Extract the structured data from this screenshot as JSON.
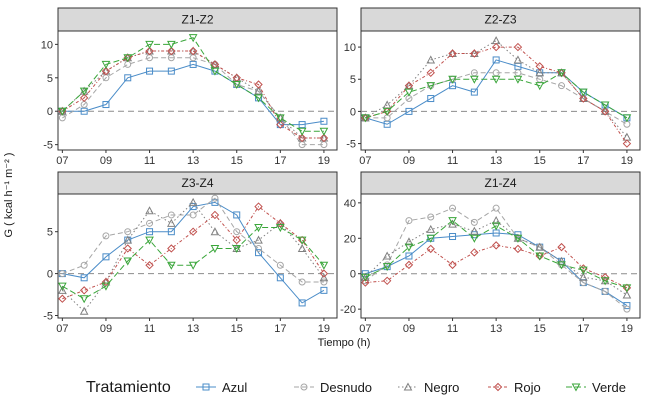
{
  "chart_data": {
    "type": "line",
    "xlabel": "Tiempo (h)",
    "ylabel": "G ( kcal h⁻¹ m⁻² )",
    "legend_title": "Tratamiento",
    "legend_position": "bottom",
    "x_ticks": [
      "07",
      "09",
      "11",
      "13",
      "15",
      "17",
      "19"
    ],
    "x_tick_values": [
      7,
      9,
      11,
      13,
      15,
      17,
      19
    ],
    "xlim": [
      6.8,
      19.6
    ],
    "x": [
      7,
      8,
      9,
      10,
      11,
      12,
      13,
      14,
      15,
      16,
      17,
      18,
      19
    ],
    "reference_line": 0,
    "series_styles": [
      {
        "name": "Azul",
        "color": "#4a8cc8",
        "dash": "",
        "marker": "square"
      },
      {
        "name": "Desnudo",
        "color": "#a6a6a6",
        "dash": "5,3",
        "marker": "circle"
      },
      {
        "name": "Negro",
        "color": "#808080",
        "dash": "1.5,2.5",
        "marker": "triangle-up"
      },
      {
        "name": "Rojo",
        "color": "#c0504d",
        "dash": "3,2,1,2",
        "marker": "diamond"
      },
      {
        "name": "Verde",
        "color": "#3aa63a",
        "dash": "6,3",
        "marker": "triangle-down"
      }
    ],
    "panels": [
      {
        "title": "Z1-Z2",
        "ylim": [
          -5.8,
          12
        ],
        "y_ticks": [
          -5,
          0,
          5,
          10
        ],
        "series": [
          {
            "name": "Azul",
            "values": [
              0,
              0,
              1,
              5,
              6,
              6,
              7,
              6,
              4,
              2,
              -2,
              -2,
              -1.5
            ]
          },
          {
            "name": "Desnudo",
            "values": [
              -1,
              1,
              5,
              7,
              8,
              8,
              8,
              7,
              4,
              3,
              -1,
              -5,
              -5
            ]
          },
          {
            "name": "Negro",
            "values": [
              0,
              3,
              6,
              8,
              9,
              9,
              9,
              7,
              5,
              3,
              -1,
              -4,
              -4
            ]
          },
          {
            "name": "Rojo",
            "values": [
              0,
              2,
              6,
              8,
              9,
              9,
              9,
              7,
              5,
              4,
              -2,
              -4,
              -4
            ]
          },
          {
            "name": "Verde",
            "values": [
              0,
              3,
              7,
              8,
              10,
              10,
              11,
              6,
              4,
              2,
              -1,
              -3,
              -3
            ]
          }
        ]
      },
      {
        "title": "Z2-Z3",
        "ylim": [
          -6,
          12.5
        ],
        "y_ticks": [
          -5,
          0,
          5,
          10
        ],
        "series": [
          {
            "name": "Azul",
            "values": [
              -1,
              -2,
              0,
              2,
              4,
              3,
              8,
              7,
              6,
              6,
              3,
              1,
              -1
            ]
          },
          {
            "name": "Desnudo",
            "values": [
              -1,
              -1,
              2,
              4,
              5,
              6,
              6,
              6,
              5,
              4,
              2,
              0,
              -2
            ]
          },
          {
            "name": "Negro",
            "values": [
              -1,
              1,
              4,
              8,
              9,
              9,
              11,
              8,
              6,
              6,
              2,
              0,
              -4
            ]
          },
          {
            "name": "Rojo",
            "values": [
              -1,
              0,
              4,
              6,
              9,
              9,
              10,
              10,
              7,
              6,
              2,
              0,
              -5
            ]
          },
          {
            "name": "Verde",
            "values": [
              -1,
              0,
              3,
              4,
              5,
              5,
              5,
              5,
              4,
              6,
              3,
              1,
              -1
            ]
          }
        ]
      },
      {
        "title": "Z3-Z4",
        "ylim": [
          -5.3,
          9.5
        ],
        "y_ticks": [
          -5,
          0,
          5
        ],
        "series": [
          {
            "name": "Azul",
            "values": [
              0,
              -0.5,
              2,
              4,
              5,
              5,
              8,
              8.5,
              7,
              2.5,
              -0.5,
              -3.5,
              -2
            ]
          },
          {
            "name": "Desnudo",
            "values": [
              0,
              1,
              4.5,
              5,
              6,
              7,
              7,
              9,
              5,
              3,
              1,
              -1,
              -1
            ]
          },
          {
            "name": "Negro",
            "values": [
              -2,
              -4.5,
              -1,
              4,
              7.5,
              6,
              8.5,
              5,
              3,
              4,
              6,
              3,
              -0.5
            ]
          },
          {
            "name": "Rojo",
            "values": [
              -3,
              -2,
              -1,
              3,
              1,
              3,
              5,
              7,
              4,
              8,
              6,
              4,
              0
            ]
          },
          {
            "name": "Verde",
            "values": [
              -1.5,
              -3,
              -1.5,
              1.5,
              4,
              1,
              1,
              3,
              3,
              5.5,
              5.5,
              4,
              1
            ]
          }
        ]
      },
      {
        "title": "Z1-Z4",
        "ylim": [
          -25,
          45
        ],
        "y_ticks": [
          -20,
          0,
          20,
          40
        ],
        "series": [
          {
            "name": "Azul",
            "values": [
              0,
              4,
              10,
              20,
              21,
              22,
              23,
              22,
              15,
              7,
              -5,
              -10,
              -18
            ]
          },
          {
            "name": "Desnudo",
            "values": [
              -4,
              5,
              30,
              32,
              37,
              29,
              37,
              20,
              15,
              5,
              -5,
              -10,
              -20
            ]
          },
          {
            "name": "Negro",
            "values": [
              -2,
              10,
              18,
              25,
              28,
              24,
              30,
              20,
              15,
              7,
              -2,
              -4,
              -12
            ]
          },
          {
            "name": "Rojo",
            "values": [
              -5,
              -4,
              5,
              14,
              5,
              12,
              16,
              14,
              10,
              15,
              3,
              -2,
              -8
            ]
          },
          {
            "name": "Verde",
            "values": [
              -2,
              4,
              15,
              20,
              30,
              20,
              27,
              20,
              10,
              5,
              2,
              -4,
              -8
            ]
          }
        ]
      }
    ]
  }
}
